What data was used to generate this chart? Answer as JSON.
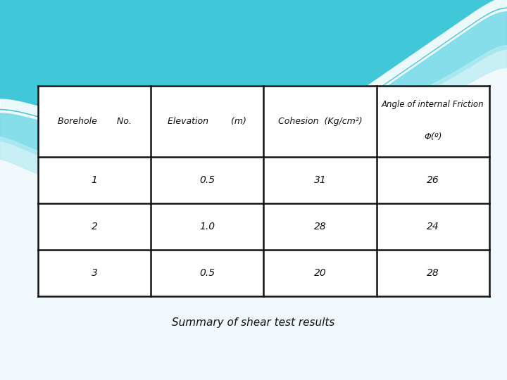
{
  "bg_color": "#f0f8fb",
  "wave_color1": "#40c8d8",
  "wave_color2": "#7adce8",
  "wave_color3": "#b8ecf4",
  "wave_white": "#e8f6fa",
  "col_headers_line1": [
    "Borehole    No.",
    "Elevation      (m)",
    "Cohesion  (Kg/cm²)",
    "Angle of internal Friction"
  ],
  "col_headers_line2": [
    "",
    "",
    "",
    "Φ(º)"
  ],
  "rows": [
    [
      "1",
      "0.5",
      "31",
      "26"
    ],
    [
      "2",
      "1.0",
      "28",
      "24"
    ],
    [
      "3",
      "0.5",
      "20",
      "28"
    ]
  ],
  "caption": "Summary of shear test results",
  "header_fontsize": 9,
  "cell_fontsize": 10,
  "caption_fontsize": 11,
  "line_color": "#111111",
  "text_color": "#111111",
  "tl": 0.075,
  "tr": 0.965,
  "tt": 0.775,
  "tb": 0.22
}
